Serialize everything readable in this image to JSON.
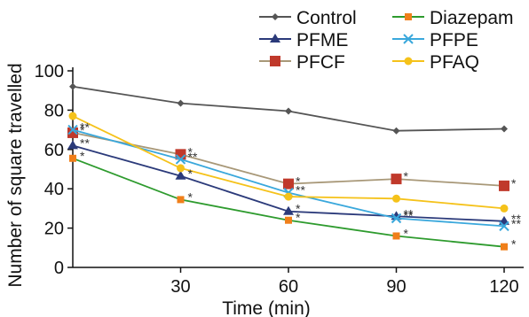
{
  "chart_data": {
    "type": "line",
    "title": "",
    "xlabel": "Time (min)",
    "ylabel": "Number of square travelled",
    "x": [
      0,
      30,
      60,
      90,
      120
    ],
    "x_tick_labels": [
      "30",
      "60",
      "90",
      "120"
    ],
    "y_ticks": [
      0,
      20,
      40,
      60,
      80,
      100
    ],
    "xlim": [
      0,
      128
    ],
    "ylim": [
      0,
      100
    ],
    "grid": false,
    "legend_position": "top-right",
    "series": [
      {
        "name": "Control",
        "color": "#555555",
        "marker": "diamond",
        "values": [
          92,
          83.5,
          79.5,
          69.5,
          70.5
        ],
        "sig": [
          "",
          "",
          "",
          "",
          ""
        ]
      },
      {
        "name": "PFME",
        "color": "#2b3a7a",
        "marker": "triangle",
        "values": [
          62,
          46.5,
          28.5,
          26,
          23.5
        ],
        "sig": [
          "**",
          "*",
          "*",
          "**",
          "**"
        ]
      },
      {
        "name": "PFCF",
        "color": "#a89878",
        "marker": "square",
        "values": [
          68.5,
          57.5,
          42.5,
          45,
          41.5
        ],
        "sig": [
          "*",
          "*",
          "*",
          "*",
          "*"
        ]
      },
      {
        "name": "Diazepam",
        "color": "#2e9b2e",
        "marker": "square-small",
        "values": [
          55.5,
          34.5,
          24,
          16,
          10.5
        ],
        "sig": [
          "*",
          "*",
          "*",
          "*",
          "*"
        ]
      },
      {
        "name": "PFPE",
        "color": "#3aa8dc",
        "marker": "cross",
        "values": [
          70,
          55,
          38,
          25,
          21
        ],
        "sig": [
          "**",
          "**",
          "**",
          "**",
          "**"
        ]
      },
      {
        "name": "PFAQ",
        "color": "#f5c21a",
        "marker": "circle",
        "values": [
          77,
          50.5,
          36,
          35,
          30
        ],
        "sig": [
          "",
          "",
          "",
          "",
          ""
        ]
      }
    ],
    "legend_marker_colors": {
      "Diazepam": "#f07f1a",
      "PFCF": "#c0392b"
    }
  }
}
